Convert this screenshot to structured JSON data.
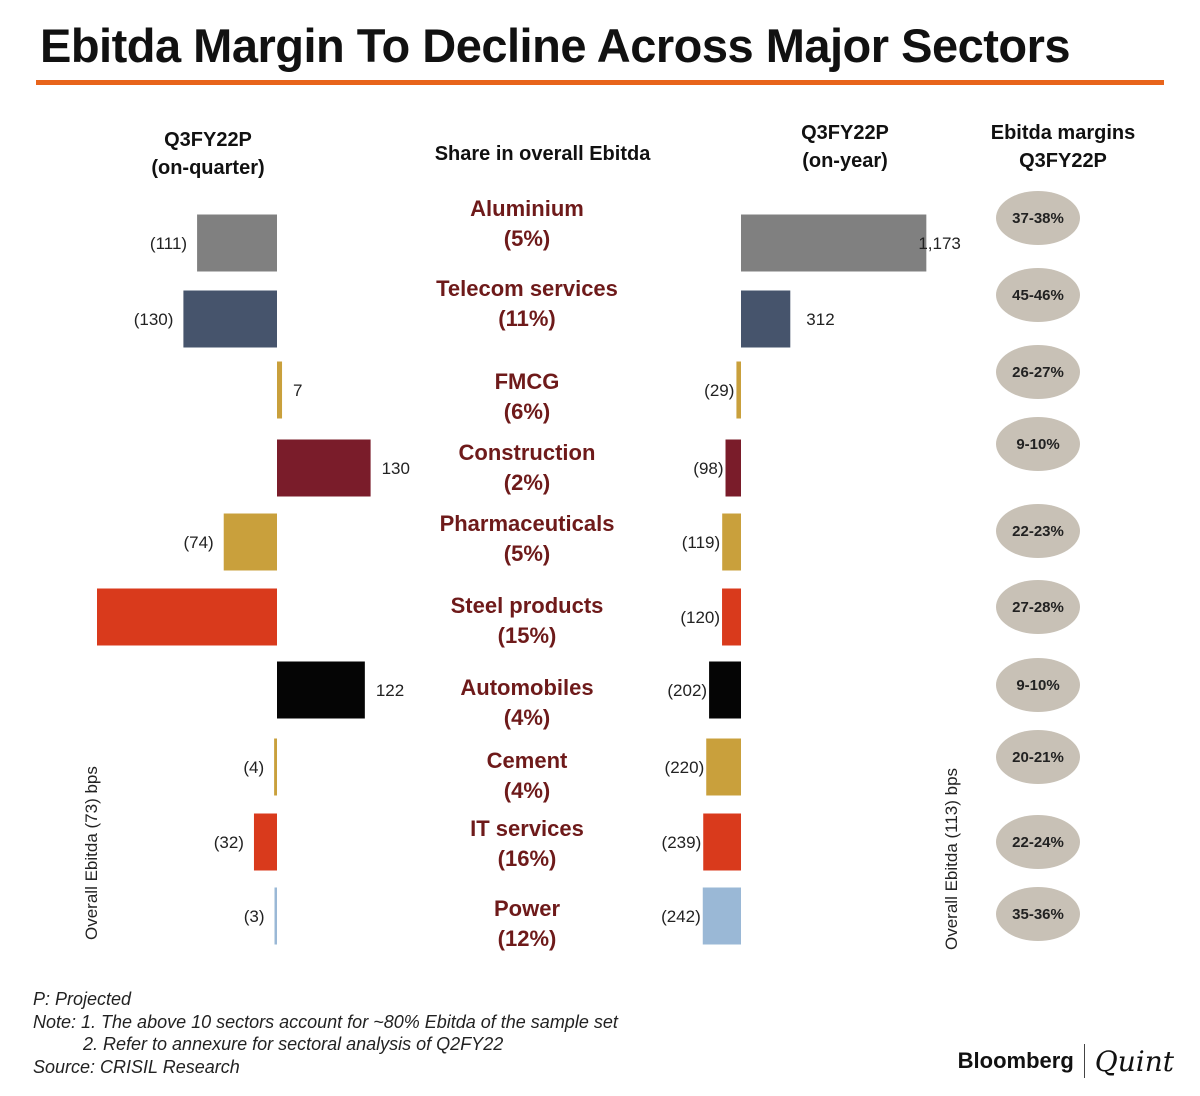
{
  "title": "Ebitda Margin To Decline Across Major Sectors",
  "headers": {
    "left": [
      "Q3FY22P",
      "(on-quarter)"
    ],
    "center": "Share in overall Ebitda",
    "right": [
      "Q3FY22P",
      "(on-year)"
    ],
    "margin": [
      "Ebitda margins",
      "Q3FY22P"
    ]
  },
  "side_labels": {
    "left": "Overall Ebitda (73) bps",
    "right": "Overall Ebitda (113) bps"
  },
  "chart_data": {
    "type": "bar",
    "title": "Ebitda Margin To Decline Across Major Sectors",
    "unit": "bps",
    "categories": [
      "Aluminium",
      "Telecom services",
      "FMCG",
      "Construction",
      "Pharmaceuticals",
      "Steel products",
      "Automobiles",
      "Cement",
      "IT services",
      "Power"
    ],
    "shares": [
      "(5%)",
      "(11%)",
      "(6%)",
      "(2%)",
      "(5%)",
      "(15%)",
      "(4%)",
      "(4%)",
      "(16%)",
      "(12%)"
    ],
    "colors": [
      "#808080",
      "#46546c",
      "#c9a03c",
      "#7a1c2a",
      "#c9a03c",
      "#d93a1c",
      "#050505",
      "#c9a03c",
      "#d93a1c",
      "#9ab8d6"
    ],
    "series": [
      {
        "name": "Q3FY22P (on-quarter)",
        "values": [
          -111,
          -130,
          7,
          130,
          -74,
          -250,
          122,
          -4,
          -32,
          -3
        ],
        "labels": [
          "(111)",
          "(130)",
          "7",
          "130",
          "(74)",
          "",
          "122",
          "(4)",
          "(32)",
          "(3)"
        ]
      },
      {
        "name": "Q3FY22P (on-year)",
        "values": [
          1173,
          312,
          -29,
          -98,
          -119,
          -120,
          -202,
          -220,
          -239,
          -242
        ],
        "labels": [
          "1,173",
          "312",
          "(29)",
          "(98)",
          "(119)",
          "(120)",
          "(202)",
          "(220)",
          "(239)",
          "(242)"
        ]
      }
    ],
    "margins": [
      "37-38%",
      "45-46%",
      "26-27%",
      "9-10%",
      "22-23%",
      "27-28%",
      "9-10%",
      "20-21%",
      "22-24%",
      "35-36%"
    ]
  },
  "notes": [
    "P: Projected",
    "Note: 1. The above 10 sectors account for ~80% Ebitda of the sample set",
    "2. Refer to annexure for sectoral analysis of Q2FY22",
    "Source: CRISIL Research"
  ],
  "brand": {
    "name": "Bloomberg",
    "partner": "Quint"
  },
  "colors": {
    "accent_rule": "#e8641b",
    "sector_text": "#6e1a1a",
    "pill": "#c8c1b6"
  }
}
